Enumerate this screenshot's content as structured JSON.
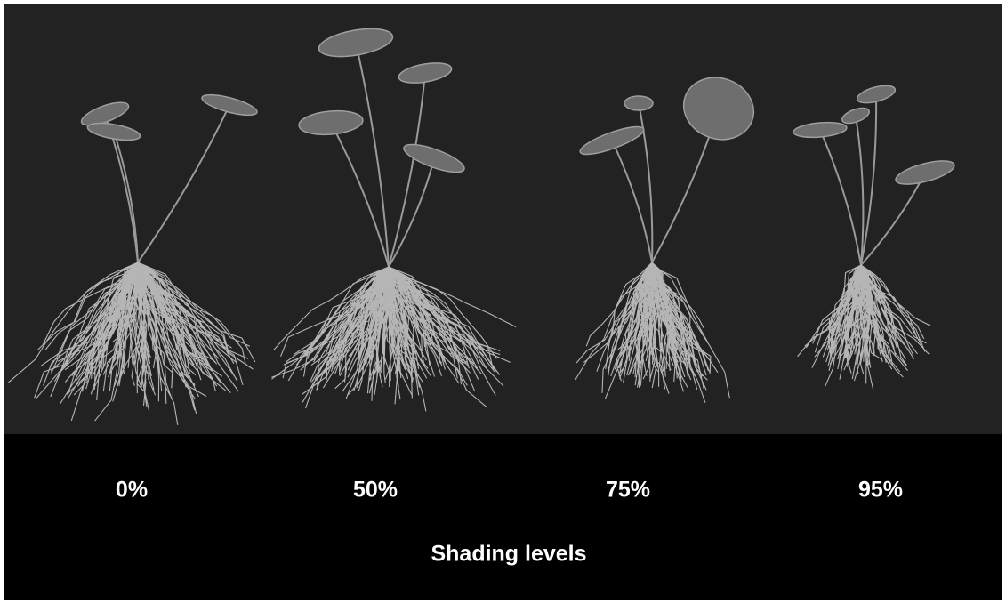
{
  "image": {
    "labels": [
      "0%",
      "50%",
      "75%",
      "95%"
    ],
    "axis_label": "Shading levels"
  }
}
